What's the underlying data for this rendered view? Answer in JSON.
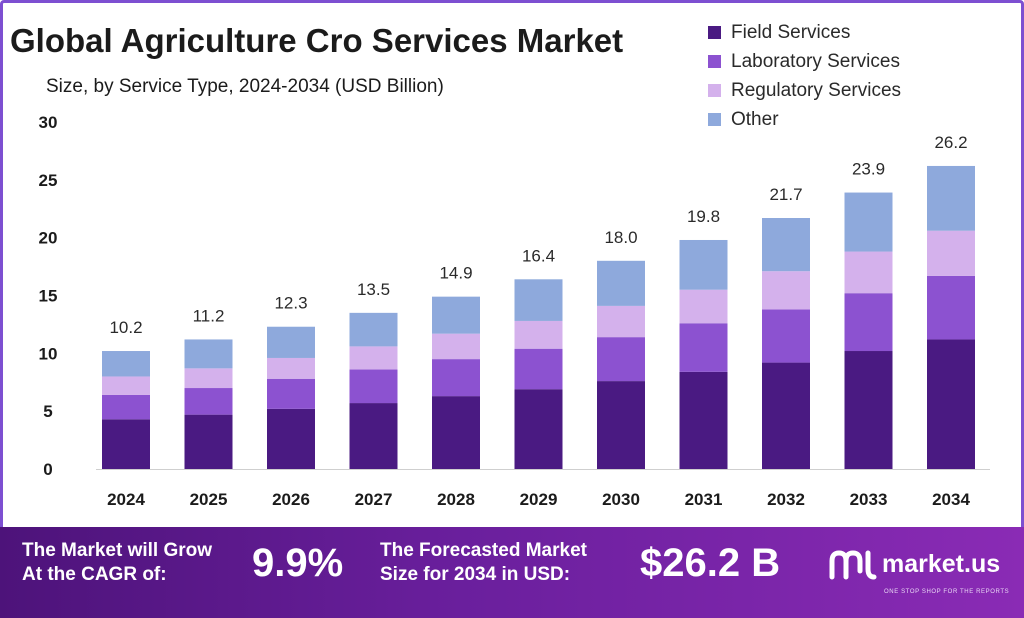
{
  "title": "Global Agriculture Cro Services Market",
  "subtitle": "Size, by Service Type, 2024-2034 (USD Billion)",
  "legend": [
    {
      "label": "Field Services",
      "color": "#4a1a82"
    },
    {
      "label": "Laboratory Services",
      "color": "#8c52d0"
    },
    {
      "label": "Regulatory Services",
      "color": "#d4b1ec"
    },
    {
      "label": "Other",
      "color": "#8ea9dc"
    }
  ],
  "footer": {
    "cagr_text_line1": "The Market will Grow",
    "cagr_text_line2": "At the CAGR of:",
    "cagr_value": "9.9%",
    "forecast_text_line1": "The Forecasted Market",
    "forecast_text_line2": "Size for 2034 in USD:",
    "forecast_value": "$26.2 B",
    "brand": "market.us",
    "brand_tagline": "ONE STOP SHOP FOR THE REPORTS"
  },
  "chart_data": {
    "type": "bar",
    "stacked": true,
    "title": "Global Agriculture Cro Services Market",
    "subtitle": "Size, by Service Type, 2024-2034 (USD Billion)",
    "categories": [
      "2024",
      "2025",
      "2026",
      "2027",
      "2028",
      "2029",
      "2030",
      "2031",
      "2032",
      "2033",
      "2034"
    ],
    "series": [
      {
        "name": "Field Services",
        "color": "#4a1a82",
        "values": [
          4.3,
          4.7,
          5.2,
          5.7,
          6.3,
          6.9,
          7.6,
          8.4,
          9.2,
          10.2,
          11.2
        ]
      },
      {
        "name": "Laboratory Services",
        "color": "#8c52d0",
        "values": [
          2.1,
          2.3,
          2.6,
          2.9,
          3.2,
          3.5,
          3.8,
          4.2,
          4.6,
          5.0,
          5.5
        ]
      },
      {
        "name": "Regulatory Services",
        "color": "#d4b1ec",
        "values": [
          1.6,
          1.7,
          1.8,
          2.0,
          2.2,
          2.4,
          2.7,
          2.9,
          3.3,
          3.6,
          3.9
        ]
      },
      {
        "name": "Other",
        "color": "#8ea9dc",
        "values": [
          2.2,
          2.5,
          2.7,
          2.9,
          3.2,
          3.6,
          3.9,
          4.3,
          4.6,
          5.1,
          5.6
        ]
      }
    ],
    "totals": [
      "10.2",
      "11.2",
      "12.3",
      "13.5",
      "14.9",
      "16.4",
      "18.0",
      "19.8",
      "21.7",
      "23.9",
      "26.2"
    ],
    "yticks": [
      0,
      5,
      10,
      15,
      20,
      25,
      30
    ],
    "ylim": [
      0,
      30
    ],
    "grid": false,
    "legend_position": "top-right"
  }
}
